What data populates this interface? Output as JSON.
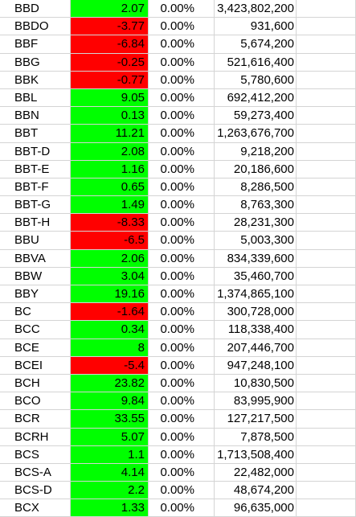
{
  "rows": [
    {
      "ticker": "BBD",
      "change": "2.07",
      "sign": "pos",
      "pct": "0.00%",
      "volume": "3,423,802,200"
    },
    {
      "ticker": "BBDO",
      "change": "-3.77",
      "sign": "neg",
      "pct": "0.00%",
      "volume": "931,600"
    },
    {
      "ticker": "BBF",
      "change": "-6.84",
      "sign": "neg",
      "pct": "0.00%",
      "volume": "5,674,200"
    },
    {
      "ticker": "BBG",
      "change": "-0.25",
      "sign": "neg",
      "pct": "0.00%",
      "volume": "521,616,400"
    },
    {
      "ticker": "BBK",
      "change": "-0.77",
      "sign": "neg",
      "pct": "0.00%",
      "volume": "5,780,600"
    },
    {
      "ticker": "BBL",
      "change": "9.05",
      "sign": "pos",
      "pct": "0.00%",
      "volume": "692,412,200"
    },
    {
      "ticker": "BBN",
      "change": "0.13",
      "sign": "pos",
      "pct": "0.00%",
      "volume": "59,273,400"
    },
    {
      "ticker": "BBT",
      "change": "11.21",
      "sign": "pos",
      "pct": "0.00%",
      "volume": "1,263,676,700"
    },
    {
      "ticker": "BBT-D",
      "change": "2.08",
      "sign": "pos",
      "pct": "0.00%",
      "volume": "9,218,200"
    },
    {
      "ticker": "BBT-E",
      "change": "1.16",
      "sign": "pos",
      "pct": "0.00%",
      "volume": "20,186,600"
    },
    {
      "ticker": "BBT-F",
      "change": "0.65",
      "sign": "pos",
      "pct": "0.00%",
      "volume": "8,286,500"
    },
    {
      "ticker": "BBT-G",
      "change": "1.49",
      "sign": "pos",
      "pct": "0.00%",
      "volume": "8,763,300"
    },
    {
      "ticker": "BBT-H",
      "change": "-8.33",
      "sign": "neg",
      "pct": "0.00%",
      "volume": "28,231,300"
    },
    {
      "ticker": "BBU",
      "change": "-6.5",
      "sign": "neg",
      "pct": "0.00%",
      "volume": "5,003,300"
    },
    {
      "ticker": "BBVA",
      "change": "2.06",
      "sign": "pos",
      "pct": "0.00%",
      "volume": "834,339,600"
    },
    {
      "ticker": "BBW",
      "change": "3.04",
      "sign": "pos",
      "pct": "0.00%",
      "volume": "35,460,700"
    },
    {
      "ticker": "BBY",
      "change": "19.16",
      "sign": "pos",
      "pct": "0.00%",
      "volume": "1,374,865,100"
    },
    {
      "ticker": "BC",
      "change": "-1.64",
      "sign": "neg",
      "pct": "0.00%",
      "volume": "300,728,000"
    },
    {
      "ticker": "BCC",
      "change": "0.34",
      "sign": "pos",
      "pct": "0.00%",
      "volume": "118,338,400"
    },
    {
      "ticker": "BCE",
      "change": "8",
      "sign": "pos",
      "pct": "0.00%",
      "volume": "207,446,700"
    },
    {
      "ticker": "BCEI",
      "change": "-5.4",
      "sign": "neg",
      "pct": "0.00%",
      "volume": "947,248,100"
    },
    {
      "ticker": "BCH",
      "change": "23.82",
      "sign": "pos",
      "pct": "0.00%",
      "volume": "10,830,500"
    },
    {
      "ticker": "BCO",
      "change": "9.84",
      "sign": "pos",
      "pct": "0.00%",
      "volume": "83,995,900"
    },
    {
      "ticker": "BCR",
      "change": "33.55",
      "sign": "pos",
      "pct": "0.00%",
      "volume": "127,217,500"
    },
    {
      "ticker": "BCRH",
      "change": "5.07",
      "sign": "pos",
      "pct": "0.00%",
      "volume": "7,878,500"
    },
    {
      "ticker": "BCS",
      "change": "1.1",
      "sign": "pos",
      "pct": "0.00%",
      "volume": "1,713,508,400"
    },
    {
      "ticker": "BCS-A",
      "change": "4.14",
      "sign": "pos",
      "pct": "0.00%",
      "volume": "22,482,000"
    },
    {
      "ticker": "BCS-D",
      "change": "2.2",
      "sign": "pos",
      "pct": "0.00%",
      "volume": "48,674,200"
    },
    {
      "ticker": "BCX",
      "change": "1.33",
      "sign": "pos",
      "pct": "0.00%",
      "volume": "96,635,000"
    }
  ],
  "colors": {
    "positive": "#00ff00",
    "negative": "#ff0000",
    "gridline": "#d4d4d4"
  }
}
